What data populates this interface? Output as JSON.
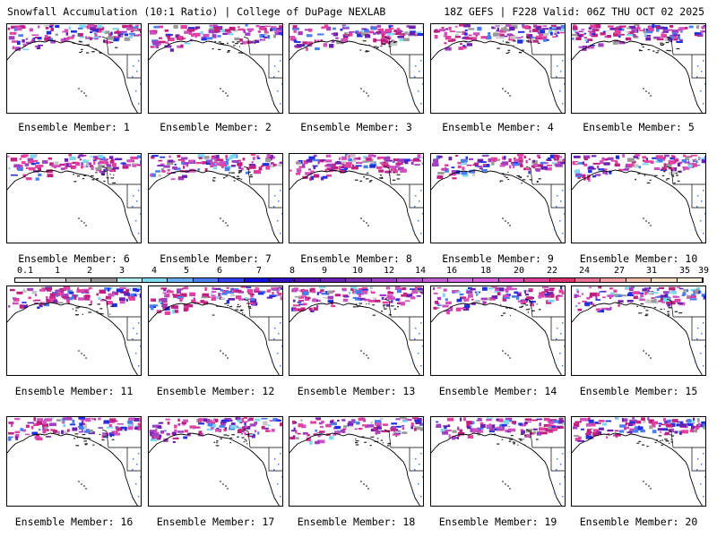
{
  "header": {
    "title": "Snowfall Accumulation (10:1 Ratio) | College of DuPage NEXLAB",
    "run_info": "18Z GEFS | F228 Valid: 06Z THU OCT 02 2025"
  },
  "colorbar": {
    "labels": [
      "0.1",
      "1",
      "2",
      "3",
      "4",
      "5",
      "6",
      "7",
      "8",
      "9",
      "10",
      "12",
      "14",
      "16",
      "18",
      "20",
      "22",
      "24",
      "27",
      "31",
      "35",
      "39"
    ],
    "colors": [
      "#f2f2f2",
      "#d9d9d9",
      "#b8b8b8",
      "#959595",
      "#aeeeee",
      "#7ed8f0",
      "#67aff0",
      "#4a7df0",
      "#3040f0",
      "#1010e0",
      "#3010c0",
      "#5010b0",
      "#6a20b0",
      "#8030b0",
      "#9a40c0",
      "#b050d0",
      "#c060d0",
      "#d070e0",
      "#d860d8",
      "#e050c0",
      "#e04098",
      "#d83070",
      "#e87090",
      "#f0a0a0",
      "#f5c0a8",
      "#fae0c0",
      "#fdf0d8"
    ]
  },
  "members": [
    {
      "label": "Ensemble Member: 1"
    },
    {
      "label": "Ensemble Member: 2"
    },
    {
      "label": "Ensemble Member: 3"
    },
    {
      "label": "Ensemble Member: 4"
    },
    {
      "label": "Ensemble Member: 5"
    },
    {
      "label": "Ensemble Member: 6"
    },
    {
      "label": "Ensemble Member: 7"
    },
    {
      "label": "Ensemble Member: 8"
    },
    {
      "label": "Ensemble Member: 9"
    },
    {
      "label": "Ensemble Member: 10"
    },
    {
      "label": "Ensemble Member: 11"
    },
    {
      "label": "Ensemble Member: 12"
    },
    {
      "label": "Ensemble Member: 13"
    },
    {
      "label": "Ensemble Member: 14"
    },
    {
      "label": "Ensemble Member: 15"
    },
    {
      "label": "Ensemble Member: 16"
    },
    {
      "label": "Ensemble Member: 17"
    },
    {
      "label": "Ensemble Member: 18"
    },
    {
      "label": "Ensemble Member: 19"
    },
    {
      "label": "Ensemble Member: 20"
    }
  ]
}
